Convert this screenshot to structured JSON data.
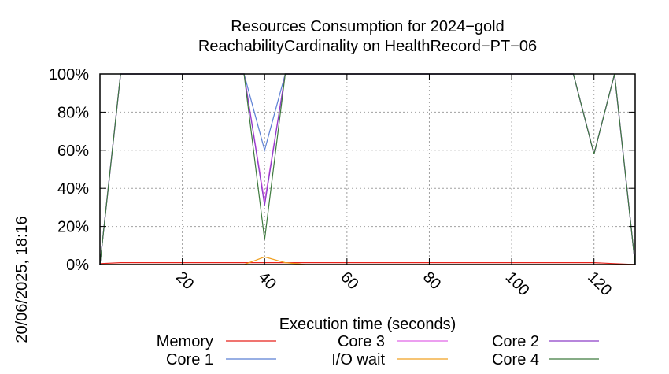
{
  "chart_data": {
    "type": "line",
    "title": [
      "Resources Consumption for 2024−gold",
      "ReachabilityCardinality on HealthRecord−PT−06"
    ],
    "xlabel": "Execution time (seconds)",
    "ylabel": "",
    "side_label": "20/06/2025, 18:16",
    "xlim": [
      0,
      130
    ],
    "ylim": [
      0,
      100
    ],
    "x_ticks": [
      20,
      40,
      60,
      80,
      100,
      120
    ],
    "y_ticks": [
      0,
      20,
      40,
      60,
      80,
      100
    ],
    "y_tick_labels": [
      "0%",
      "20%",
      "40%",
      "60%",
      "80%",
      "100%"
    ],
    "grid": true,
    "legend_position": "bottom",
    "series": [
      {
        "name": "Memory",
        "color": "#e8221b",
        "x": [
          0,
          5,
          35,
          40,
          45,
          50,
          120,
          125,
          130
        ],
        "y": [
          0.5,
          1,
          1,
          1,
          1,
          1,
          1,
          0.5,
          0
        ]
      },
      {
        "name": "Core 1",
        "color": "#5b7fd4",
        "x": [
          0,
          5,
          35,
          40,
          45,
          115,
          120,
          125,
          130
        ],
        "y": [
          0,
          100,
          100,
          60,
          100,
          100,
          58,
          100,
          0
        ]
      },
      {
        "name": "Core 3",
        "color": "#e066e8",
        "x": [
          0,
          5,
          35,
          40,
          45,
          115,
          120,
          125,
          130
        ],
        "y": [
          0,
          100,
          100,
          33,
          100,
          100,
          58,
          100,
          0
        ]
      },
      {
        "name": "I/O wait",
        "color": "#f0a020",
        "x": [
          0,
          5,
          35,
          40,
          45,
          50,
          130
        ],
        "y": [
          0,
          0,
          0,
          4,
          1,
          0,
          0
        ]
      },
      {
        "name": "Core 2",
        "color": "#8c3dc8",
        "x": [
          0,
          5,
          35,
          40,
          45,
          115,
          120,
          125,
          130
        ],
        "y": [
          0,
          100,
          100,
          31,
          100,
          100,
          58,
          100,
          0
        ]
      },
      {
        "name": "Core 4",
        "color": "#3e7a3e",
        "x": [
          0,
          5,
          35,
          40,
          45,
          115,
          120,
          125,
          130
        ],
        "y": [
          0,
          100,
          100,
          13,
          100,
          100,
          58,
          100,
          0
        ]
      }
    ]
  }
}
